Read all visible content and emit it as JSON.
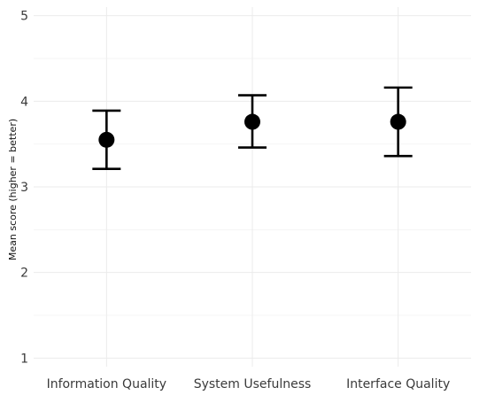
{
  "chart_data": {
    "type": "scatter",
    "title": "",
    "xlabel": "",
    "ylabel": "Mean score (higher = better)",
    "ylim": [
      0.9,
      5.1
    ],
    "yticks": [
      1,
      2,
      3,
      4,
      5
    ],
    "grid": true,
    "categories": [
      "Information Quality",
      "System Usefulness",
      "Interface Quality"
    ],
    "series": [
      {
        "mean": [
          3.55,
          3.76,
          3.76
        ],
        "lower": [
          3.21,
          3.46,
          3.36
        ],
        "upper": [
          3.89,
          4.07,
          4.16
        ]
      }
    ],
    "colors": {
      "point": "#000000",
      "errorbar": "#000000",
      "grid": "#ebebeb"
    }
  }
}
